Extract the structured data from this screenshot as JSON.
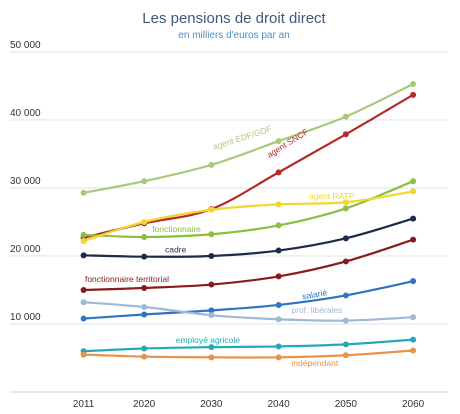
{
  "chart_data": {
    "type": "line",
    "title": "Les pensions de droit direct",
    "subtitle": "en milliers d'euros par an",
    "x": [
      2011,
      2020,
      2030,
      2040,
      2050,
      2060
    ],
    "x_tick_labels": [
      "2011",
      "2020",
      "2030",
      "2040",
      "2050",
      "2060"
    ],
    "ylim": [
      0,
      50000
    ],
    "y_ticks": [
      10000,
      20000,
      30000,
      40000,
      50000
    ],
    "y_tick_labels": [
      "10 000",
      "20 000",
      "30 000",
      "40 000",
      "50 000"
    ],
    "grid": true,
    "series": [
      {
        "name": "agent EDF/GDF",
        "color": "#a8c97a",
        "values": [
          29300,
          31000,
          33400,
          36900,
          40500,
          45300
        ]
      },
      {
        "name": "agent SNCF",
        "color": "#b52a2a",
        "values": [
          22700,
          24800,
          26900,
          32300,
          37900,
          43700
        ]
      },
      {
        "name": "fonctionnaire",
        "color": "#8cbf3f",
        "values": [
          23100,
          22800,
          23200,
          24500,
          27000,
          31000
        ]
      },
      {
        "name": "agent RATP",
        "color": "#f2d62e",
        "values": [
          22200,
          25000,
          26800,
          27600,
          27900,
          29500
        ]
      },
      {
        "name": "cadre",
        "color": "#1d2a4a",
        "values": [
          20100,
          19900,
          20000,
          20800,
          22600,
          25500
        ]
      },
      {
        "name": "fonctionnaire territorial",
        "color": "#8b1a1a",
        "values": [
          15000,
          15300,
          15800,
          17000,
          19200,
          22400
        ]
      },
      {
        "name": "salarié",
        "color": "#2f74c0",
        "values": [
          10800,
          11400,
          12000,
          12800,
          14200,
          16300
        ]
      },
      {
        "name": "prof. libérales",
        "color": "#9fb8d6",
        "values": [
          13200,
          12500,
          11300,
          10700,
          10500,
          11000
        ]
      },
      {
        "name": "employé agricole",
        "color": "#26a7b8",
        "values": [
          6000,
          6400,
          6600,
          6700,
          7000,
          7700
        ]
      },
      {
        "name": "indépendant",
        "color": "#e8924a",
        "values": [
          5500,
          5200,
          5100,
          5100,
          5400,
          6100
        ]
      }
    ],
    "labels": [
      {
        "series": 0,
        "text": "agent EDF/GDF",
        "x": 2030.4,
        "y": 35600,
        "angle": -18,
        "color": "#a8c97a"
      },
      {
        "series": 1,
        "text": "agent SNCF",
        "x": 2038.6,
        "y": 34400,
        "angle": -32,
        "color": "#b52a2a"
      },
      {
        "series": 2,
        "text": "fonctionnaire",
        "x": 2021.2,
        "y": 23500,
        "angle": 0,
        "color": "#8cbf3f"
      },
      {
        "series": 3,
        "text": "agent RATP",
        "x": 2044.5,
        "y": 28400,
        "angle": 0,
        "color": "#f2d62e"
      },
      {
        "series": 4,
        "text": "cadre",
        "x": 2023.1,
        "y": 20500,
        "angle": 0,
        "color": "#1d2a4a"
      },
      {
        "series": 5,
        "text": "fonctionnaire territorial",
        "x": 2011.2,
        "y": 16200,
        "angle": 0,
        "color": "#8b1a1a"
      },
      {
        "series": 6,
        "text": "salarié",
        "x": 2043.6,
        "y": 13600,
        "angle": -10,
        "color": "#2f74c0"
      },
      {
        "series": 7,
        "text": "prof. libérales",
        "x": 2041.9,
        "y": 11600,
        "angle": 0,
        "color": "#9fb8d6"
      },
      {
        "series": 8,
        "text": "employé agricole",
        "x": 2024.7,
        "y": 7200,
        "angle": 0,
        "color": "#26a7b8"
      },
      {
        "series": 9,
        "text": "indépendant",
        "x": 2041.9,
        "y": 3800,
        "angle": 0,
        "color": "#e8924a"
      }
    ]
  }
}
